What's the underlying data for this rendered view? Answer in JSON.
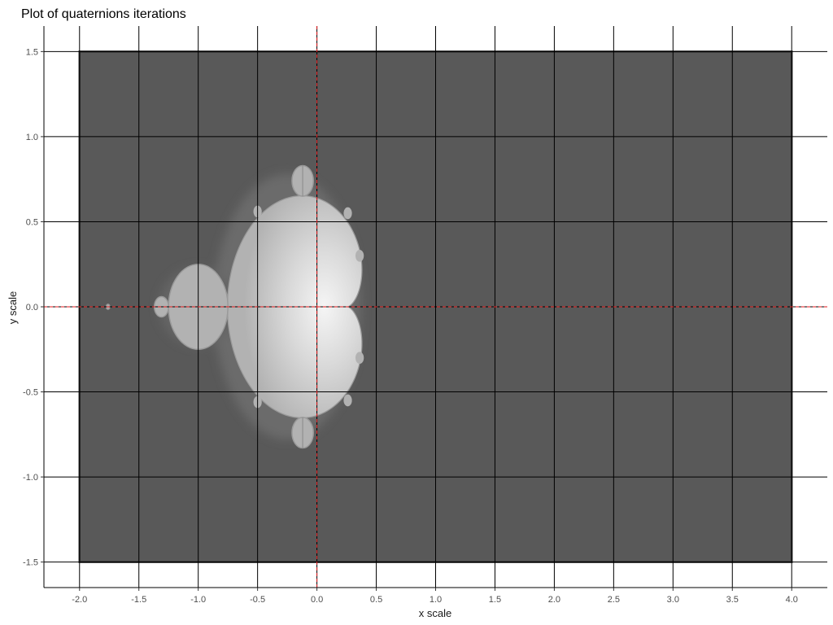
{
  "chart_data": {
    "type": "heatmap",
    "title": "Plot of quaternions iterations",
    "xlabel": "x scale",
    "ylabel": "y scale",
    "xlim": [
      -2.3,
      4.3
    ],
    "ylim": [
      -1.65,
      1.65
    ],
    "data_extent": {
      "x": [
        -2.0,
        4.0
      ],
      "y": [
        -1.5,
        1.5
      ]
    },
    "x_ticks": [
      -2.0,
      -1.5,
      -1.0,
      -0.5,
      0.0,
      0.5,
      1.0,
      1.5,
      2.0,
      2.5,
      3.0,
      3.5,
      4.0
    ],
    "x_tick_labels": [
      "-2.0",
      "-1.5",
      "-1.0",
      "-0.5",
      "0.0",
      "0.5",
      "1.0",
      "1.5",
      "2.0",
      "2.5",
      "3.0",
      "3.5",
      "4.0"
    ],
    "y_ticks": [
      -1.5,
      -1.0,
      -0.5,
      0.0,
      0.5,
      1.0,
      1.5
    ],
    "y_tick_labels": [
      "-1.5",
      "-1.0",
      "-0.5",
      "0.0",
      "0.5",
      "1.0",
      "1.5"
    ],
    "grid": true,
    "reference_lines": {
      "x": 0.0,
      "y": 0.0,
      "color": "#e41a1c",
      "style": "dashed"
    },
    "legend": "none",
    "colors": {
      "background": "#595959",
      "set_fill": "#b2b2b2",
      "set_highlight": "#f2f2f2",
      "grid": "#000000",
      "reference": "#e41a1c"
    },
    "features": [
      {
        "name": "main cardioid",
        "x_range": [
          -0.75,
          0.25
        ],
        "y_range": [
          -0.65,
          0.65
        ]
      },
      {
        "name": "period-2 bulb",
        "center": [
          -1.0,
          0.0
        ],
        "radius": 0.25
      },
      {
        "name": "upper bulb",
        "center": [
          -0.12,
          0.74
        ],
        "radius": 0.09
      },
      {
        "name": "lower bulb",
        "center": [
          -0.12,
          -0.74
        ],
        "radius": 0.09
      },
      {
        "name": "small bulb",
        "center": [
          -1.31,
          0.0
        ],
        "radius": 0.06
      },
      {
        "name": "minibrot",
        "center": [
          -1.76,
          0.0
        ],
        "radius": 0.015
      }
    ]
  }
}
